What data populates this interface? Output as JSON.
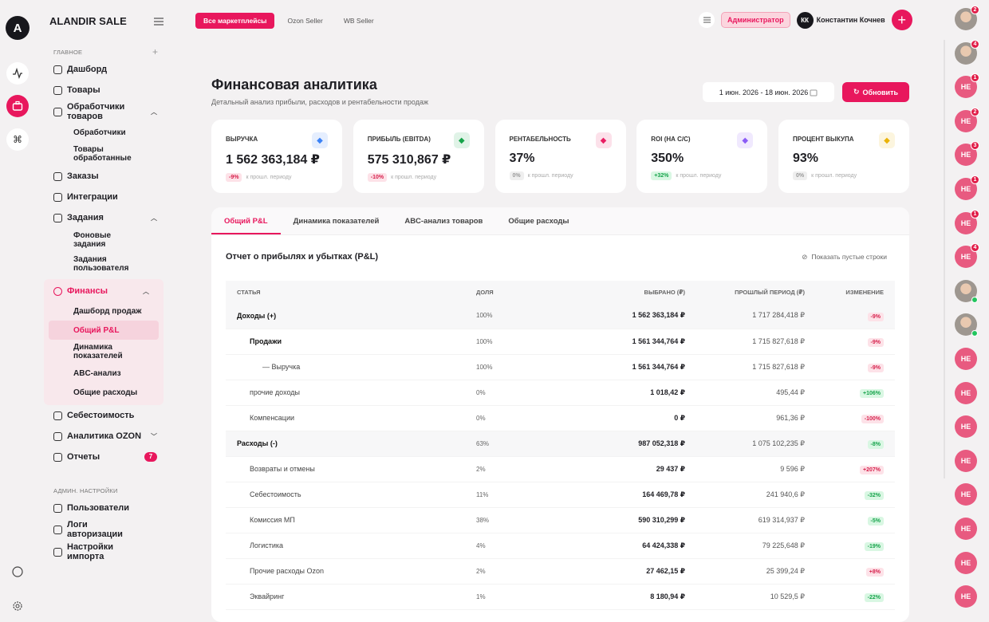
{
  "rail": {
    "logo": "A"
  },
  "sidebar": {
    "brand": "ALANDIR SALE",
    "sections": [
      {
        "title": "ГЛАВНОЕ",
        "items": [
          {
            "label": "Дашборд"
          },
          {
            "label": "Товары"
          },
          {
            "label": "Обработчики товаров",
            "expanded": true,
            "children": [
              {
                "label": "Обработчики"
              },
              {
                "label": "Товары обработанные"
              }
            ]
          },
          {
            "label": "Заказы"
          },
          {
            "label": "Интеграции"
          },
          {
            "label": "Задания",
            "expanded": true,
            "children": [
              {
                "label": "Фоновые задания"
              },
              {
                "label": "Задания пользователя"
              }
            ]
          },
          {
            "label": "Финансы",
            "active": true,
            "expanded": true,
            "children": [
              {
                "label": "Дашборд продаж"
              },
              {
                "label": "Общий P&L",
                "active": true
              },
              {
                "label": "Динамика показателей"
              },
              {
                "label": "ABC-анализ"
              },
              {
                "label": "Общие расходы"
              }
            ]
          },
          {
            "label": "Себестоимость"
          },
          {
            "label": "Аналитика OZON",
            "expanded": false
          },
          {
            "label": "Отчеты",
            "badge": "7"
          }
        ]
      },
      {
        "title": "АДМИН. НАСТРОЙКИ",
        "items": [
          {
            "label": "Пользователи"
          },
          {
            "label": "Логи авторизации"
          },
          {
            "label": "Настройки импорта"
          }
        ]
      }
    ]
  },
  "topbar": {
    "marketplaces": [
      {
        "label": "Все маркетплейсы",
        "active": true
      },
      {
        "label": "Ozon Seller"
      },
      {
        "label": "WB Seller"
      }
    ],
    "role": "Администратор",
    "user": {
      "initials": "КК",
      "name": "Константин Кочнев"
    }
  },
  "header": {
    "title": "Финансовая аналитика",
    "subtitle": "Детальный анализ прибыли, расходов и рентабельности продаж",
    "date_range": "1 июн. 2026 - 18 июн. 2026",
    "refresh": "Обновить"
  },
  "kpis": [
    {
      "label": "ВЫРУЧКА",
      "value": "1 562 363,184 ₽",
      "change": "-9%",
      "tone": "bad",
      "note": "к прошл. периоду",
      "color": "#3b82f6"
    },
    {
      "label": "ПРИБЫЛЬ (EBITDA)",
      "value": "575 310,867 ₽",
      "change": "-10%",
      "tone": "bad",
      "note": "к прошл. периоду",
      "color": "#16a34a"
    },
    {
      "label": "РЕНТАБЕЛЬНОСТЬ",
      "value": "37%",
      "change": "0%",
      "tone": "neutral",
      "note": "к прошл. периоду",
      "color": "#e91e63"
    },
    {
      "label": "ROI (НА С/С)",
      "value": "350%",
      "change": "+32%",
      "tone": "good",
      "note": "к прошл. периоду",
      "color": "#8b5cf6"
    },
    {
      "label": "ПРОЦЕНТ ВЫКУПА",
      "value": "93%",
      "change": "0%",
      "tone": "neutral",
      "note": "к прошл. периоду",
      "color": "#eab308"
    }
  ],
  "tabs": [
    {
      "label": "Общий P&L",
      "active": true
    },
    {
      "label": "Динамика показателей"
    },
    {
      "label": "ABC-анализ товаров"
    },
    {
      "label": "Общие расходы"
    }
  ],
  "pnl": {
    "title": "Отчет о прибылях и убытках (P&L)",
    "toggle": "Показать пустые строки",
    "columns": [
      "СТАТЬЯ",
      "ДОЛЯ",
      "ВЫБРАНО (₽)",
      "ПРОШЛЫЙ ПЕРИОД (₽)",
      "ИЗМЕНЕНИЕ"
    ],
    "rows": [
      {
        "level": 0,
        "tone": "bad",
        "cells": [
          "Доходы (+)",
          "100%",
          "1 562 363,184 ₽",
          "1 717 284,418 ₽",
          "-9%"
        ]
      },
      {
        "level": 1,
        "bold": true,
        "tone": "bad",
        "cells": [
          "Продажи",
          "100%",
          "1 561 344,764 ₽",
          "1 715 827,618 ₽",
          "-9%"
        ]
      },
      {
        "level": 2,
        "tone": "bad",
        "cells": [
          "— Выручка",
          "100%",
          "1 561 344,764 ₽",
          "1 715 827,618 ₽",
          "-9%"
        ]
      },
      {
        "level": 1,
        "tone": "good",
        "cells": [
          "прочие доходы",
          "0%",
          "1 018,42 ₽",
          "495,44 ₽",
          "+106%"
        ]
      },
      {
        "level": 1,
        "tone": "bad",
        "cells": [
          "Компенсации",
          "0%",
          "0 ₽",
          "961,36 ₽",
          "-100%"
        ]
      },
      {
        "level": 0,
        "tone": "good",
        "cells": [
          "Расходы (-)",
          "63%",
          "987 052,318 ₽",
          "1 075 102,235 ₽",
          "-8%"
        ]
      },
      {
        "level": 1,
        "tone": "bad",
        "cells": [
          "Возвраты и отмены",
          "2%",
          "29 437 ₽",
          "9 596 ₽",
          "+207%"
        ]
      },
      {
        "level": 1,
        "tone": "good",
        "cells": [
          "Себестоимость",
          "11%",
          "164 469,78 ₽",
          "241 940,6 ₽",
          "-32%"
        ]
      },
      {
        "level": 1,
        "tone": "good",
        "cells": [
          "Комиссия МП",
          "38%",
          "590 310,299 ₽",
          "619 314,937 ₽",
          "-5%"
        ]
      },
      {
        "level": 1,
        "tone": "good",
        "cells": [
          "Логистика",
          "4%",
          "64 424,338 ₽",
          "79 225,648 ₽",
          "-19%"
        ]
      },
      {
        "level": 1,
        "tone": "bad",
        "cells": [
          "Прочие расходы Ozon",
          "2%",
          "27 462,15 ₽",
          "25 399,24 ₽",
          "+8%"
        ]
      },
      {
        "level": 1,
        "tone": "good",
        "cells": [
          "Эквайринг",
          "1%",
          "8 180,94 ₽",
          "10 529,5 ₽",
          "-22%"
        ]
      }
    ]
  },
  "contacts": [
    {
      "photo": true,
      "badge": "2"
    },
    {
      "photo": true,
      "badge": "4"
    },
    {
      "initials": "НЕ",
      "badge": "1"
    },
    {
      "initials": "НЕ",
      "badge": "2"
    },
    {
      "initials": "НЕ",
      "badge": "3"
    },
    {
      "initials": "НЕ",
      "badge": "1"
    },
    {
      "initials": "НЕ",
      "badge": "1"
    },
    {
      "initials": "НЕ",
      "badge": "4"
    },
    {
      "photo": true,
      "online": true
    },
    {
      "photo": true,
      "online": true
    },
    {
      "initials": "НЕ"
    },
    {
      "initials": "НЕ"
    },
    {
      "initials": "НЕ"
    },
    {
      "initials": "НЕ"
    },
    {
      "initials": "НЕ"
    },
    {
      "initials": "НЕ"
    },
    {
      "initials": "НЕ"
    },
    {
      "initials": "НЕ"
    }
  ]
}
